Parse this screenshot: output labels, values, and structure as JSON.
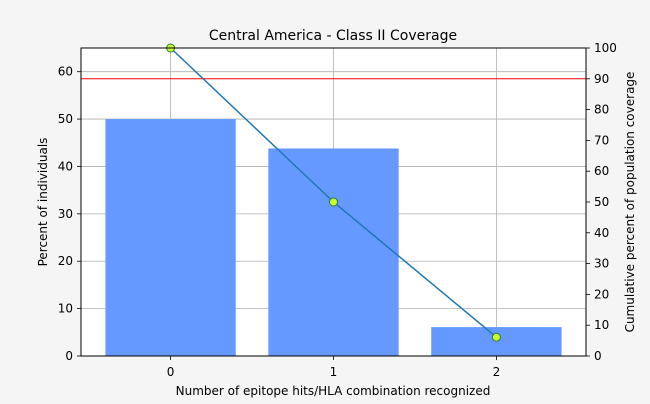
{
  "chart_data": {
    "type": "bar",
    "title": "Central America - Class II Coverage",
    "xlabel": "Number of epitope hits/HLA combination recognized",
    "ylabel": "Percent of individuals",
    "ylabel_right": "Cumulative percent of population coverage",
    "categories": [
      "0",
      "1",
      "2"
    ],
    "series": [
      {
        "type": "bar",
        "values": [
          50.0,
          43.8,
          6.1
        ]
      },
      {
        "type": "line",
        "axis": "right",
        "values": [
          100.0,
          50.0,
          6.1
        ]
      }
    ],
    "reference_line": {
      "axis": "right",
      "value": 90
    },
    "xlim": [
      -0.55,
      2.55
    ],
    "ylim": [
      0,
      65
    ],
    "ylim_right": [
      0,
      100
    ],
    "yticks": [
      0,
      10,
      20,
      30,
      40,
      50,
      60
    ],
    "yticks_right": [
      0,
      10,
      20,
      30,
      40,
      50,
      60,
      70,
      80,
      90,
      100
    ],
    "grid": true,
    "colors": {
      "bar": "#6699ff",
      "line": "#1f77b4",
      "marker_fill": "#ccff33",
      "reference_line": "#ff0000",
      "background": "#f5f5f5",
      "plot_background": "#ffffff"
    }
  }
}
